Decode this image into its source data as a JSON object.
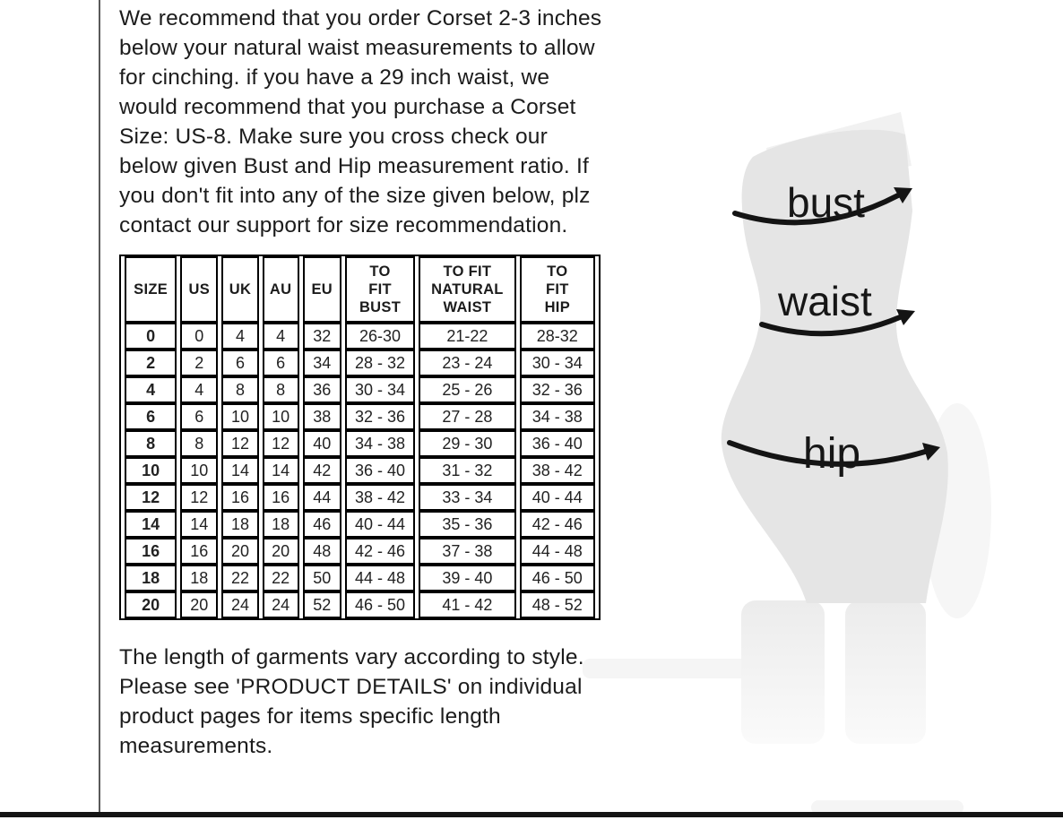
{
  "page": {
    "intro_text": "We recommend that you order Corset 2-3 inches below your natural waist measurements to allow for cinching. if you have a 29 inch waist, we would recommend that you purchase a Corset Size: US-8. Make sure you cross check our below given Bust and Hip measurement ratio. If you don't fit into any of the size given below, plz contact our support for size recommendation.",
    "footer_text": "The length of garments vary according to style. Please see 'PRODUCT DETAILS'  on individual product pages for items specific length measurements."
  },
  "size_chart": {
    "columns": [
      "SIZE",
      "US",
      "UK",
      "AU",
      "EU",
      "TO\nFIT\nBUST",
      "TO FIT\nNATURAL\nWAIST",
      "TO\nFIT\nHIP"
    ],
    "rows": [
      [
        "0",
        "0",
        "4",
        "4",
        "32",
        "26-30",
        "21-22",
        "28-32"
      ],
      [
        "2",
        "2",
        "6",
        "6",
        "34",
        "28 - 32",
        "23 - 24",
        "30 - 34"
      ],
      [
        "4",
        "4",
        "8",
        "8",
        "36",
        "30 - 34",
        "25 - 26",
        "32 - 36"
      ],
      [
        "6",
        "6",
        "10",
        "10",
        "38",
        "32 - 36",
        "27 - 28",
        "34 - 38"
      ],
      [
        "8",
        "8",
        "12",
        "12",
        "40",
        "34 - 38",
        "29 - 30",
        "36 - 40"
      ],
      [
        "10",
        "10",
        "14",
        "14",
        "42",
        "36 - 40",
        "31 - 32",
        "38 - 42"
      ],
      [
        "12",
        "12",
        "16",
        "16",
        "44",
        "38 - 42",
        "33 - 34",
        "40 - 44"
      ],
      [
        "14",
        "14",
        "18",
        "18",
        "46",
        "40 - 44",
        "35 - 36",
        "42 - 46"
      ],
      [
        "16",
        "16",
        "20",
        "20",
        "48",
        "42 - 46",
        "37 - 38",
        "44 - 48"
      ],
      [
        "18",
        "18",
        "22",
        "22",
        "50",
        "44 - 48",
        "39 - 40",
        "46 - 50"
      ],
      [
        "20",
        "20",
        "24",
        "24",
        "52",
        "46 - 50",
        "41 - 42",
        "48 - 52"
      ]
    ]
  },
  "figure": {
    "labels": {
      "bust": "bust",
      "waist": "waist",
      "hip": "hip"
    }
  },
  "colors": {
    "body_fill": "#e5e5e5",
    "shadow_fill": "#f1f1f1",
    "leg_fill_top": "#ececec",
    "leg_fill_bottom": "#fafafa",
    "arrow_color": "#141414",
    "text_color": "#1c1c1c",
    "bottom_bar": "#141414"
  }
}
